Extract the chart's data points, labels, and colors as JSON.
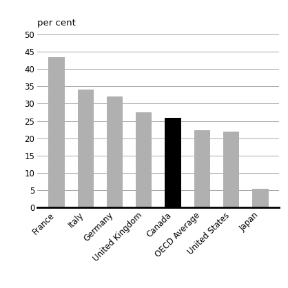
{
  "categories": [
    "France",
    "Italy",
    "Germany",
    "United Kingdom",
    "Canada",
    "OECD Average",
    "United States",
    "Japan"
  ],
  "values": [
    43.5,
    34.0,
    32.0,
    27.5,
    26.0,
    22.3,
    21.9,
    5.4
  ],
  "bar_colors": [
    "#b0b0b0",
    "#b0b0b0",
    "#b0b0b0",
    "#b0b0b0",
    "#000000",
    "#b0b0b0",
    "#b0b0b0",
    "#b0b0b0"
  ],
  "ylabel_text": "per cent",
  "ylim": [
    0,
    50
  ],
  "yticks": [
    0,
    5,
    10,
    15,
    20,
    25,
    30,
    35,
    40,
    45,
    50
  ],
  "background_color": "#ffffff",
  "bar_width": 0.55,
  "grid_color": "#999999",
  "tick_fontsize": 8.5,
  "label_fontsize": 9.5
}
